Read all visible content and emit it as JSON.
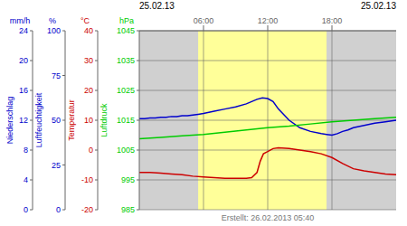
{
  "chart_data": {
    "type": "line",
    "titles": [
      "25.02.13",
      "25.02.13"
    ],
    "annotations": [
      "Erstellt: 26.02.2013 05:40"
    ],
    "xlim": [
      0,
      24
    ],
    "xticks": [
      {
        "value": 6,
        "label": "06:00"
      },
      {
        "value": 12,
        "label": "12:00"
      },
      {
        "value": 18,
        "label": "18:00"
      }
    ],
    "ylim": [
      0,
      24
    ],
    "yticks": [
      0,
      4,
      8,
      12,
      16,
      20,
      24
    ],
    "ylabel": "Niederschlag",
    "yunit": "mm/h",
    "ycolor": "#0000cc",
    "extra_axes": [
      {
        "label": "Luftdruck",
        "unit": "hPa",
        "color": "#00cc00",
        "lim": [
          985,
          1045
        ],
        "ticks": [
          985,
          995,
          1005,
          1015,
          1025,
          1035,
          1045
        ]
      },
      {
        "label": "Temperatur",
        "unit": "°C",
        "color": "#cc0000",
        "lim": [
          -20,
          40
        ],
        "ticks": [
          -20,
          -10,
          0,
          10,
          20,
          30,
          40
        ]
      },
      {
        "label": "Luftfeuchtigkeit",
        "unit": "%",
        "color": "#0000cc",
        "lim": [
          0,
          100
        ],
        "ticks": [
          0,
          25,
          50,
          75,
          100
        ]
      }
    ],
    "grid": true,
    "background_color": "#d0d0d0",
    "shaded_region": {
      "x": [
        5.5,
        17.5
      ],
      "color": "#ffff99"
    },
    "series": [
      {
        "color": "#0000cc",
        "x": [
          0,
          0.5,
          1,
          1.5,
          2,
          2.5,
          3,
          3.5,
          4,
          4.5,
          5,
          5.5,
          6,
          7,
          8,
          9,
          10,
          11,
          11.5,
          12,
          12.5,
          13,
          14,
          15,
          16,
          17,
          17.5,
          18,
          18.5,
          19,
          19.5,
          20,
          21,
          22,
          23,
          24
        ],
        "values": [
          12.2,
          12.2,
          12.3,
          12.3,
          12.4,
          12.4,
          12.5,
          12.5,
          12.6,
          12.6,
          12.7,
          12.8,
          12.9,
          13.2,
          13.5,
          13.8,
          14.2,
          14.8,
          15.0,
          14.9,
          14.5,
          13.5,
          12.0,
          11.0,
          10.5,
          10.2,
          10.1,
          10.0,
          10.2,
          10.5,
          10.7,
          11.0,
          11.3,
          11.6,
          11.8,
          12.0
        ]
      },
      {
        "color": "#00cc00",
        "x": [
          0,
          2,
          4,
          6,
          8,
          10,
          12,
          14,
          16,
          18,
          20,
          22,
          24
        ],
        "values": [
          9.5,
          9.7,
          9.9,
          10.1,
          10.4,
          10.7,
          11.0,
          11.2,
          11.5,
          11.8,
          12.0,
          12.2,
          12.4
        ]
      },
      {
        "color": "#cc0000",
        "x": [
          0,
          1,
          2,
          3,
          4,
          5,
          6,
          7,
          8,
          9,
          10,
          10.5,
          11,
          11.3,
          11.6,
          12,
          12.5,
          13,
          14,
          15,
          16,
          17,
          18,
          19,
          20,
          21,
          22,
          23,
          24
        ],
        "values": [
          5.0,
          5.0,
          4.9,
          4.8,
          4.7,
          4.5,
          4.4,
          4.3,
          4.2,
          4.2,
          4.2,
          4.3,
          5.0,
          6.5,
          7.5,
          7.8,
          8.2,
          8.3,
          8.2,
          8.0,
          7.8,
          7.5,
          7.0,
          6.2,
          5.5,
          5.2,
          5.0,
          4.8,
          4.7
        ]
      }
    ]
  }
}
